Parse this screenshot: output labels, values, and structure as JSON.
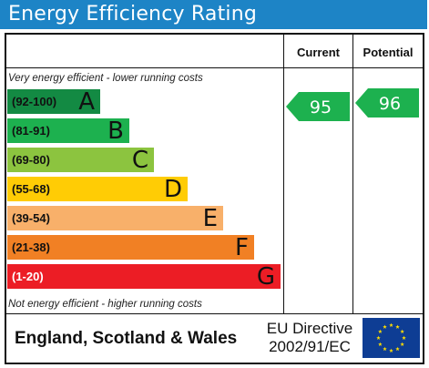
{
  "title": "Energy Efficiency Rating",
  "columns": {
    "current": "Current",
    "potential": "Potential"
  },
  "notes": {
    "top": "Very energy efficient - lower running costs",
    "bottom": "Not energy efficient - higher running costs"
  },
  "chart_data": {
    "type": "bar",
    "bands": [
      {
        "range": "(92-100)",
        "letter": "A",
        "color": "#138a43"
      },
      {
        "range": "(81-91)",
        "letter": "B",
        "color": "#1db14f"
      },
      {
        "range": "(69-80)",
        "letter": "C",
        "color": "#8cc43f"
      },
      {
        "range": "(55-68)",
        "letter": "D",
        "color": "#ffcc05"
      },
      {
        "range": "(39-54)",
        "letter": "E",
        "color": "#f8b06a"
      },
      {
        "range": "(21-38)",
        "letter": "F",
        "color": "#f18024"
      },
      {
        "range": "(1-20)",
        "letter": "G",
        "color": "#ec1d25"
      }
    ],
    "current": {
      "value": 95,
      "band": "A",
      "color": "#1db14f"
    },
    "potential": {
      "value": 96,
      "band": "A",
      "color": "#1db14f"
    }
  },
  "footer": {
    "country": "England, Scotland & Wales",
    "directive_line1": "EU Directive",
    "directive_line2": "2002/91/EC"
  },
  "colors": {
    "title_bar": "#1d84c6",
    "eu_blue": "#0e3d94",
    "eu_star": "#ffdd00"
  }
}
